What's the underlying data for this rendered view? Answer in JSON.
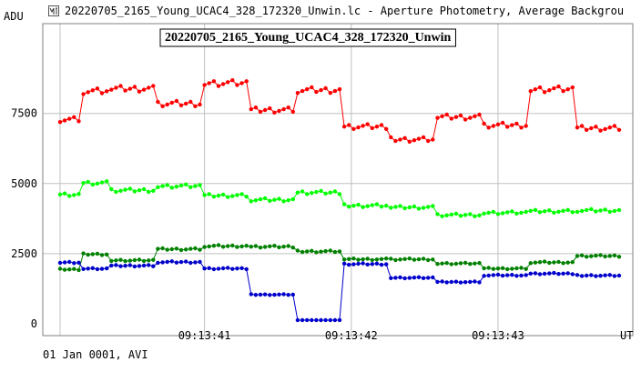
{
  "window": {
    "title": "20220705_2165_Young_UCAC4_328_172320_Unwin.lc - Aperture Photometry, Average Backgrou",
    "icon": "photometry-app-icon"
  },
  "footer": {
    "text": "01 Jan 0001, AVI"
  },
  "colors": {
    "red": "#ff0000",
    "light_green": "#00ff00",
    "dark_green": "#008000",
    "blue": "#0000cc",
    "grid": "#c0c0c0"
  },
  "chart_data": {
    "type": "line",
    "title": "20220705_2165_Young_UCAC4_328_172320_Unwin",
    "ylabel": "ADU",
    "xlabel": "UT",
    "ylim": [
      0,
      10700
    ],
    "xlim": [
      0,
      120
    ],
    "grid": true,
    "y_ticks": [
      0,
      2500,
      5000,
      7500
    ],
    "x_ticks": [
      {
        "x": 31,
        "label": "09:13:41"
      },
      {
        "x": 62.5,
        "label": "09:13:42"
      },
      {
        "x": 94,
        "label": "09:13:43"
      }
    ],
    "series": [
      {
        "color": "#ff0000",
        "segments": [
          {
            "x0": 0,
            "x1": 4,
            "y": 7280
          },
          {
            "x0": 5,
            "x1": 10,
            "y": 8290
          },
          {
            "x0": 11,
            "x1": 20,
            "y": 8380
          },
          {
            "x0": 21,
            "x1": 30,
            "y": 7850
          },
          {
            "x0": 31,
            "x1": 40,
            "y": 8580
          },
          {
            "x0": 41,
            "x1": 50,
            "y": 7620
          },
          {
            "x0": 51,
            "x1": 60,
            "y": 8330
          },
          {
            "x0": 61,
            "x1": 70,
            "y": 7030
          },
          {
            "x0": 71,
            "x1": 80,
            "y": 6570
          },
          {
            "x0": 81,
            "x1": 90,
            "y": 7370
          },
          {
            "x0": 91,
            "x1": 100,
            "y": 7080
          },
          {
            "x0": 101,
            "x1": 110,
            "y": 8360
          },
          {
            "x0": 111,
            "x1": 120,
            "y": 6970
          }
        ]
      },
      {
        "color": "#00ff00",
        "segments": [
          {
            "x0": 0,
            "x1": 4,
            "y": 4610
          },
          {
            "x0": 5,
            "x1": 10,
            "y": 5020
          },
          {
            "x0": 11,
            "x1": 20,
            "y": 4760
          },
          {
            "x0": 21,
            "x1": 30,
            "y": 4910
          },
          {
            "x0": 31,
            "x1": 40,
            "y": 4570
          },
          {
            "x0": 41,
            "x1": 50,
            "y": 4420
          },
          {
            "x0": 51,
            "x1": 60,
            "y": 4680
          },
          {
            "x0": 61,
            "x1": 70,
            "y": 4210
          },
          {
            "x0": 71,
            "x1": 80,
            "y": 4150
          },
          {
            "x0": 81,
            "x1": 90,
            "y": 3880
          },
          {
            "x0": 91,
            "x1": 100,
            "y": 3960
          },
          {
            "x0": 101,
            "x1": 110,
            "y": 4010
          },
          {
            "x0": 111,
            "x1": 120,
            "y": 4040
          }
        ]
      },
      {
        "color": "#008000",
        "segments": [
          {
            "x0": 0,
            "x1": 4,
            "y": 1940
          },
          {
            "x0": 5,
            "x1": 10,
            "y": 2480
          },
          {
            "x0": 11,
            "x1": 20,
            "y": 2260
          },
          {
            "x0": 21,
            "x1": 30,
            "y": 2660
          },
          {
            "x0": 31,
            "x1": 40,
            "y": 2770
          },
          {
            "x0": 41,
            "x1": 50,
            "y": 2750
          },
          {
            "x0": 51,
            "x1": 60,
            "y": 2580
          },
          {
            "x0": 61,
            "x1": 70,
            "y": 2300
          },
          {
            "x0": 71,
            "x1": 80,
            "y": 2300
          },
          {
            "x0": 81,
            "x1": 90,
            "y": 2150
          },
          {
            "x0": 91,
            "x1": 100,
            "y": 1970
          },
          {
            "x0": 101,
            "x1": 110,
            "y": 2190
          },
          {
            "x0": 111,
            "x1": 120,
            "y": 2420
          }
        ]
      },
      {
        "color": "#0000cc",
        "segments": [
          {
            "x0": 0,
            "x1": 4,
            "y": 2180
          },
          {
            "x0": 5,
            "x1": 10,
            "y": 1960
          },
          {
            "x0": 11,
            "x1": 20,
            "y": 2070
          },
          {
            "x0": 21,
            "x1": 30,
            "y": 2200
          },
          {
            "x0": 31,
            "x1": 40,
            "y": 1970
          },
          {
            "x0": 41,
            "x1": 50,
            "y": 1040
          },
          {
            "x0": 51,
            "x1": 60,
            "y": 130
          },
          {
            "x0": 61,
            "x1": 70,
            "y": 2130
          },
          {
            "x0": 71,
            "x1": 80,
            "y": 1640
          },
          {
            "x0": 81,
            "x1": 90,
            "y": 1490
          },
          {
            "x0": 91,
            "x1": 100,
            "y": 1730
          },
          {
            "x0": 101,
            "x1": 110,
            "y": 1790
          },
          {
            "x0": 111,
            "x1": 120,
            "y": 1720
          }
        ]
      }
    ]
  }
}
